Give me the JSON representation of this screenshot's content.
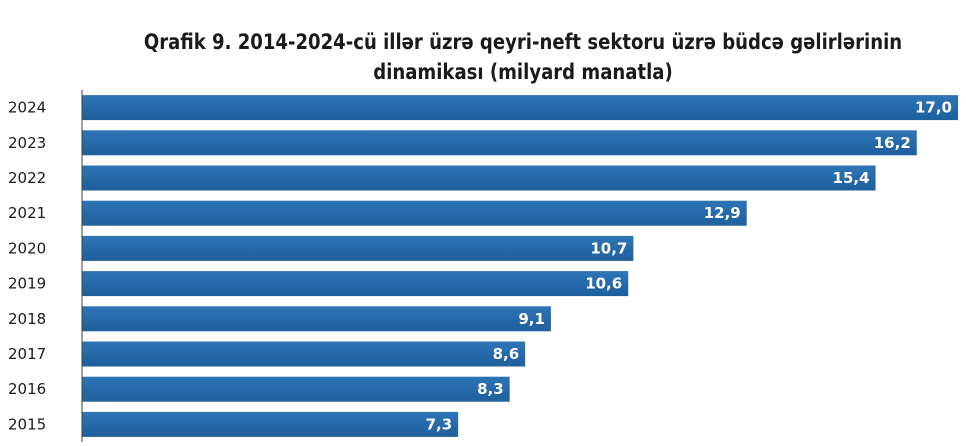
{
  "chart_data": {
    "type": "bar",
    "orientation": "horizontal",
    "title": "Qrafik 9. 2014-2024-cü illər üzrə qeyri-neft sektoru üzrə büdcə gəlirlərinin dinamikası (milyard manatla)",
    "title_lines": [
      "Qrafik 9. 2014-2024-cü illər üzrə qeyri-neft sektoru üzrə büdcə gəlirlərinin",
      "dinamikası (milyard manatla)"
    ],
    "categories": [
      "2024",
      "2023",
      "2022",
      "2021",
      "2020",
      "2019",
      "2018",
      "2017",
      "2016",
      "2015"
    ],
    "values": [
      17.0,
      16.2,
      15.4,
      12.9,
      10.7,
      10.6,
      9.1,
      8.6,
      8.3,
      7.3
    ],
    "value_labels": [
      "17,0",
      "16,2",
      "15,4",
      "12,9",
      "10,7",
      "10,6",
      "9,1",
      "8,6",
      "8,3",
      "7,3"
    ],
    "xlim": [
      0,
      17.0
    ],
    "bar_color": "#2e75b6",
    "bar_gradient_dark": "#1f5f9c",
    "axis_color": "#404040",
    "grid": false,
    "legend": "none"
  }
}
